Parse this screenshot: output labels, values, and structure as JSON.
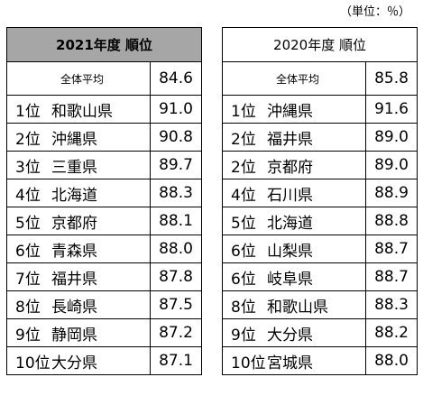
{
  "unit_note": "（単位：％）",
  "tables": [
    {
      "header": "2021年度 順位",
      "average": {
        "label": "全体平均",
        "value": "84.6"
      },
      "rows": [
        {
          "rank": "1位",
          "pref": "和歌山県",
          "value": "91.0"
        },
        {
          "rank": "2位",
          "pref": "沖縄県",
          "value": "90.8"
        },
        {
          "rank": "3位",
          "pref": "三重県",
          "value": "89.7"
        },
        {
          "rank": "4位",
          "pref": "北海道",
          "value": "88.3"
        },
        {
          "rank": "5位",
          "pref": "京都府",
          "value": "88.1"
        },
        {
          "rank": "6位",
          "pref": "青森県",
          "value": "88.0"
        },
        {
          "rank": "7位",
          "pref": "福井県",
          "value": "87.8"
        },
        {
          "rank": "8位",
          "pref": "長崎県",
          "value": "87.5"
        },
        {
          "rank": "9位",
          "pref": "静岡県",
          "value": "87.2"
        },
        {
          "rank": "10位",
          "pref": "大分県",
          "value": "87.1"
        }
      ]
    },
    {
      "header": "2020年度 順位",
      "average": {
        "label": "全体平均",
        "value": "85.8"
      },
      "rows": [
        {
          "rank": "1位",
          "pref": "沖縄県",
          "value": "91.6"
        },
        {
          "rank": "2位",
          "pref": "福井県",
          "value": "89.0"
        },
        {
          "rank": "2位",
          "pref": "京都府",
          "value": "89.0"
        },
        {
          "rank": "4位",
          "pref": "石川県",
          "value": "88.9"
        },
        {
          "rank": "5位",
          "pref": "北海道",
          "value": "88.8"
        },
        {
          "rank": "6位",
          "pref": "山梨県",
          "value": "88.7"
        },
        {
          "rank": "6位",
          "pref": "岐阜県",
          "value": "88.7"
        },
        {
          "rank": "8位",
          "pref": "和歌山県",
          "value": "88.3"
        },
        {
          "rank": "9位",
          "pref": "大分県",
          "value": "88.2"
        },
        {
          "rank": "10位",
          "pref": "宮城県",
          "value": "88.0"
        }
      ]
    }
  ]
}
